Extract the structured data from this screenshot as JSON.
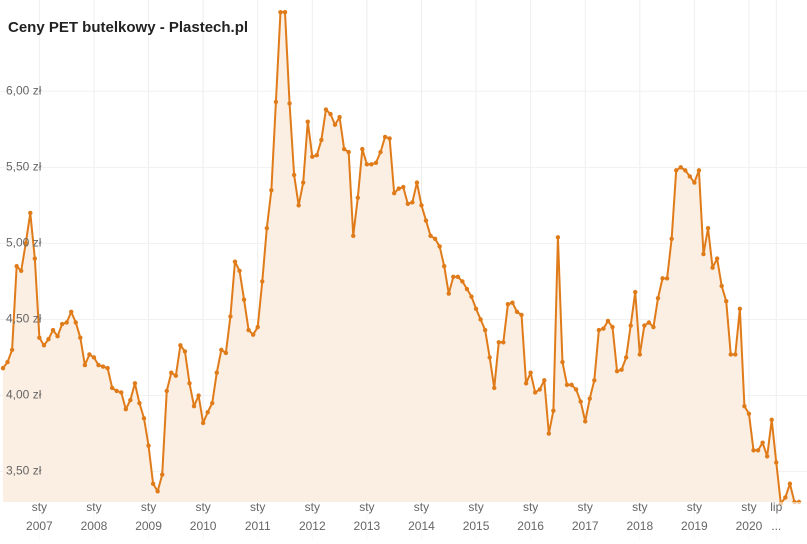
{
  "chart_data": {
    "type": "line",
    "title": "Ceny PET butelkowy - Plastech.pl",
    "categories": [
      null,
      null,
      null,
      null,
      null,
      null,
      null,
      null,
      "sty",
      null,
      null,
      null,
      null,
      null,
      null,
      null,
      null,
      null,
      null,
      null,
      "sty",
      null,
      null,
      null,
      null,
      null,
      null,
      null,
      null,
      null,
      null,
      null,
      "sty",
      null,
      null,
      null,
      null,
      null,
      null,
      null,
      null,
      null,
      null,
      null,
      "sty",
      null,
      null,
      null,
      null,
      null,
      null,
      null,
      null,
      null,
      null,
      null,
      "sty",
      null,
      null,
      null,
      null,
      null,
      null,
      null,
      null,
      null,
      null,
      null,
      "sty",
      null,
      null,
      null,
      null,
      null,
      null,
      null,
      null,
      null,
      null,
      null,
      "sty",
      null,
      null,
      null,
      null,
      null,
      null,
      null,
      null,
      null,
      null,
      null,
      "sty",
      null,
      null,
      null,
      null,
      null,
      null,
      null,
      null,
      null,
      null,
      null,
      "sty",
      null,
      null,
      null,
      null,
      null,
      null,
      null,
      null,
      null,
      null,
      null,
      "sty",
      null,
      null,
      null,
      null,
      null,
      null,
      null,
      null,
      null,
      null,
      null,
      "sty",
      null,
      null,
      null,
      null,
      null,
      null,
      null,
      null,
      null,
      null,
      null,
      "sty",
      null,
      null,
      null,
      null,
      null,
      null,
      null,
      null,
      null,
      null,
      null,
      "sty",
      null,
      null,
      null,
      null,
      null,
      null,
      null,
      null,
      null,
      null,
      null,
      "sty",
      null,
      null,
      null,
      null,
      null,
      "lip",
      null,
      null,
      null,
      null,
      null
    ],
    "category_years": [
      null,
      null,
      null,
      null,
      null,
      null,
      null,
      null,
      "2007",
      null,
      null,
      null,
      null,
      null,
      null,
      null,
      null,
      null,
      null,
      null,
      "2008",
      null,
      null,
      null,
      null,
      null,
      null,
      null,
      null,
      null,
      null,
      null,
      "2009",
      null,
      null,
      null,
      null,
      null,
      null,
      null,
      null,
      null,
      null,
      null,
      "2010",
      null,
      null,
      null,
      null,
      null,
      null,
      null,
      null,
      null,
      null,
      null,
      "2011",
      null,
      null,
      null,
      null,
      null,
      null,
      null,
      null,
      null,
      null,
      null,
      "2012",
      null,
      null,
      null,
      null,
      null,
      null,
      null,
      null,
      null,
      null,
      null,
      "2013",
      null,
      null,
      null,
      null,
      null,
      null,
      null,
      null,
      null,
      null,
      null,
      "2014",
      null,
      null,
      null,
      null,
      null,
      null,
      null,
      null,
      null,
      null,
      null,
      "2015",
      null,
      null,
      null,
      null,
      null,
      null,
      null,
      null,
      null,
      null,
      null,
      "2016",
      null,
      null,
      null,
      null,
      null,
      null,
      null,
      null,
      null,
      null,
      null,
      "2017",
      null,
      null,
      null,
      null,
      null,
      null,
      null,
      null,
      null,
      null,
      null,
      "2018",
      null,
      null,
      null,
      null,
      null,
      null,
      null,
      null,
      null,
      null,
      null,
      "2019",
      null,
      null,
      null,
      null,
      null,
      null,
      null,
      null,
      null,
      null,
      null,
      "2020",
      null,
      null,
      null,
      null,
      null,
      "...",
      null,
      null,
      null,
      null,
      null
    ],
    "values": [
      4.18,
      4.22,
      4.3,
      4.85,
      4.82,
      5.0,
      5.2,
      4.9,
      4.38,
      4.33,
      4.37,
      4.43,
      4.39,
      4.47,
      4.48,
      4.55,
      4.48,
      4.38,
      4.2,
      4.27,
      4.25,
      4.2,
      4.19,
      4.18,
      4.05,
      4.03,
      4.02,
      3.91,
      3.97,
      4.08,
      3.95,
      3.85,
      3.67,
      3.42,
      3.37,
      3.48,
      4.03,
      4.15,
      4.13,
      4.33,
      4.29,
      4.08,
      3.93,
      4.0,
      3.82,
      3.89,
      3.95,
      4.15,
      4.3,
      4.28,
      4.52,
      4.88,
      4.82,
      4.63,
      4.43,
      4.4,
      4.45,
      4.75,
      5.1,
      5.35,
      5.93,
      6.52,
      6.52,
      5.92,
      5.45,
      5.25,
      5.4,
      5.8,
      5.57,
      5.58,
      5.68,
      5.88,
      5.85,
      5.78,
      5.83,
      5.62,
      5.6,
      5.05,
      5.3,
      5.62,
      5.52,
      5.52,
      5.53,
      5.6,
      5.7,
      5.69,
      5.33,
      5.36,
      5.37,
      5.26,
      5.27,
      5.4,
      5.25,
      5.15,
      5.05,
      5.03,
      4.98,
      4.85,
      4.67,
      4.78,
      4.78,
      4.75,
      4.7,
      4.65,
      4.57,
      4.5,
      4.43,
      4.25,
      4.05,
      4.35,
      4.35,
      4.6,
      4.61,
      4.55,
      4.53,
      4.08,
      4.15,
      4.02,
      4.04,
      4.1,
      3.75,
      3.9,
      5.04,
      4.22,
      4.07,
      4.07,
      4.04,
      3.96,
      3.83,
      3.98,
      4.1,
      4.43,
      4.44,
      4.49,
      4.45,
      4.16,
      4.17,
      4.25,
      4.46,
      4.68,
      4.27,
      4.46,
      4.48,
      4.45,
      4.64,
      4.77,
      4.77,
      5.03,
      5.48,
      5.5,
      5.48,
      5.44,
      5.4,
      5.48,
      4.93,
      5.1,
      4.84,
      4.9,
      4.72,
      4.62,
      4.27,
      4.27,
      4.57,
      3.93,
      3.88,
      3.64,
      3.64,
      3.69,
      3.6,
      3.84,
      3.56,
      3.29,
      3.33,
      3.42,
      3.3,
      3.3
    ],
    "color": "#e07b1a",
    "fill_color": "#fbeee2",
    "ylim": [
      3.3,
      6.6
    ],
    "yticks": [
      {
        "value": 3.5,
        "label": "3,50 zł"
      },
      {
        "value": 4,
        "label": "4,00 zł"
      },
      {
        "value": 4.5,
        "label": "4,50 zł"
      },
      {
        "value": 5,
        "label": "5,00 zł"
      },
      {
        "value": 5.5,
        "label": "5,50 zł"
      },
      {
        "value": 6,
        "label": "6,00 zł"
      }
    ],
    "grid": true
  }
}
